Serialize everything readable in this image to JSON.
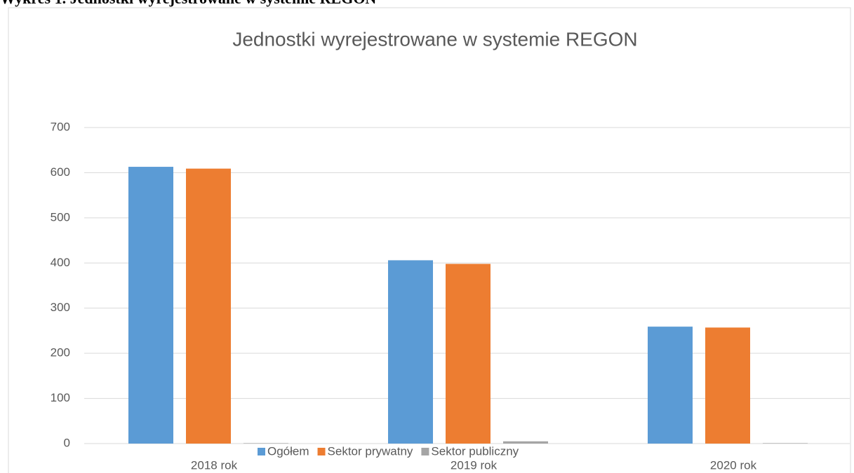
{
  "caption": "Wykres 1. Jednostki wyrejestrowane w systemie REGON",
  "chart_data": {
    "type": "bar",
    "title": "Jednostki wyrejestrowane w systemie REGON",
    "categories": [
      "2018 rok",
      "2019 rok",
      "2020 rok"
    ],
    "series": [
      {
        "name": "Ogółem",
        "color": "#5b9bd5",
        "values": [
          613,
          406,
          259
        ]
      },
      {
        "name": "Sektor prywatny",
        "color": "#ed7d31",
        "values": [
          609,
          398,
          257
        ]
      },
      {
        "name": "Sektor publiczny",
        "color": "#a5a5a5",
        "values": [
          1,
          5,
          1
        ]
      }
    ],
    "ylim": [
      0,
      700
    ],
    "yticks": [
      0,
      100,
      200,
      300,
      400,
      500,
      600,
      700
    ],
    "grid": true,
    "legend": "bottom"
  }
}
